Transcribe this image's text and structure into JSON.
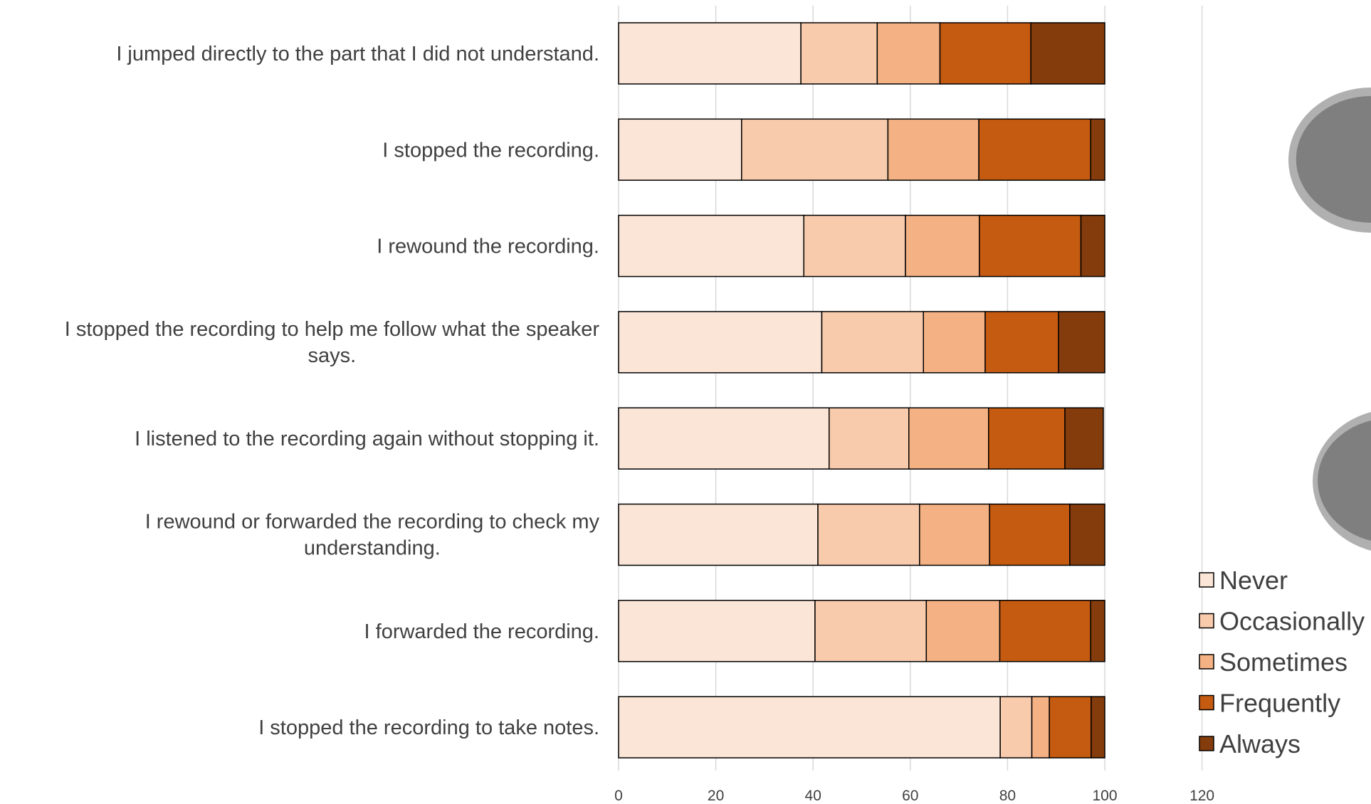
{
  "chart_data": {
    "type": "bar",
    "orientation": "horizontal",
    "stacked": true,
    "categories": [
      "I jumped directly to the part that I did not understand.",
      "I stopped the recording.",
      "I rewound the recording.",
      "I stopped the recording to help me follow what the speaker says.",
      "I listened to the recording again without stopping it.",
      "I rewound or forwarded the recording to check my understanding.",
      "I forwarded the recording.",
      "I stopped the recording to take notes."
    ],
    "series": [
      {
        "name": "Never",
        "color": "#fbe5d6",
        "values": [
          37.5,
          25.3,
          38.1,
          41.8,
          43.3,
          41.0,
          40.4,
          78.5
        ]
      },
      {
        "name": "Occasionally",
        "color": "#f8cbad",
        "values": [
          15.7,
          30.1,
          20.9,
          20.9,
          16.4,
          20.9,
          22.9,
          6.5
        ]
      },
      {
        "name": "Sometimes",
        "color": "#f4b183",
        "values": [
          12.9,
          18.7,
          15.2,
          12.7,
          16.4,
          14.4,
          15.1,
          3.6
        ]
      },
      {
        "name": "Frequently",
        "color": "#c55a11",
        "values": [
          18.7,
          23.0,
          20.9,
          15.1,
          15.7,
          16.5,
          18.7,
          8.6
        ]
      },
      {
        "name": "Always",
        "color": "#843c0c",
        "values": [
          15.2,
          2.9,
          4.9,
          9.5,
          7.9,
          7.2,
          2.9,
          2.8
        ]
      }
    ],
    "xlim": [
      0,
      120
    ],
    "xticks": [
      0,
      20,
      40,
      60,
      80,
      100,
      120
    ],
    "title": "",
    "xlabel": "",
    "ylabel": "",
    "grid": "vertical",
    "legend_position": "right",
    "bar_outline_color": "#000000",
    "grid_color": "#d9d9d9"
  }
}
